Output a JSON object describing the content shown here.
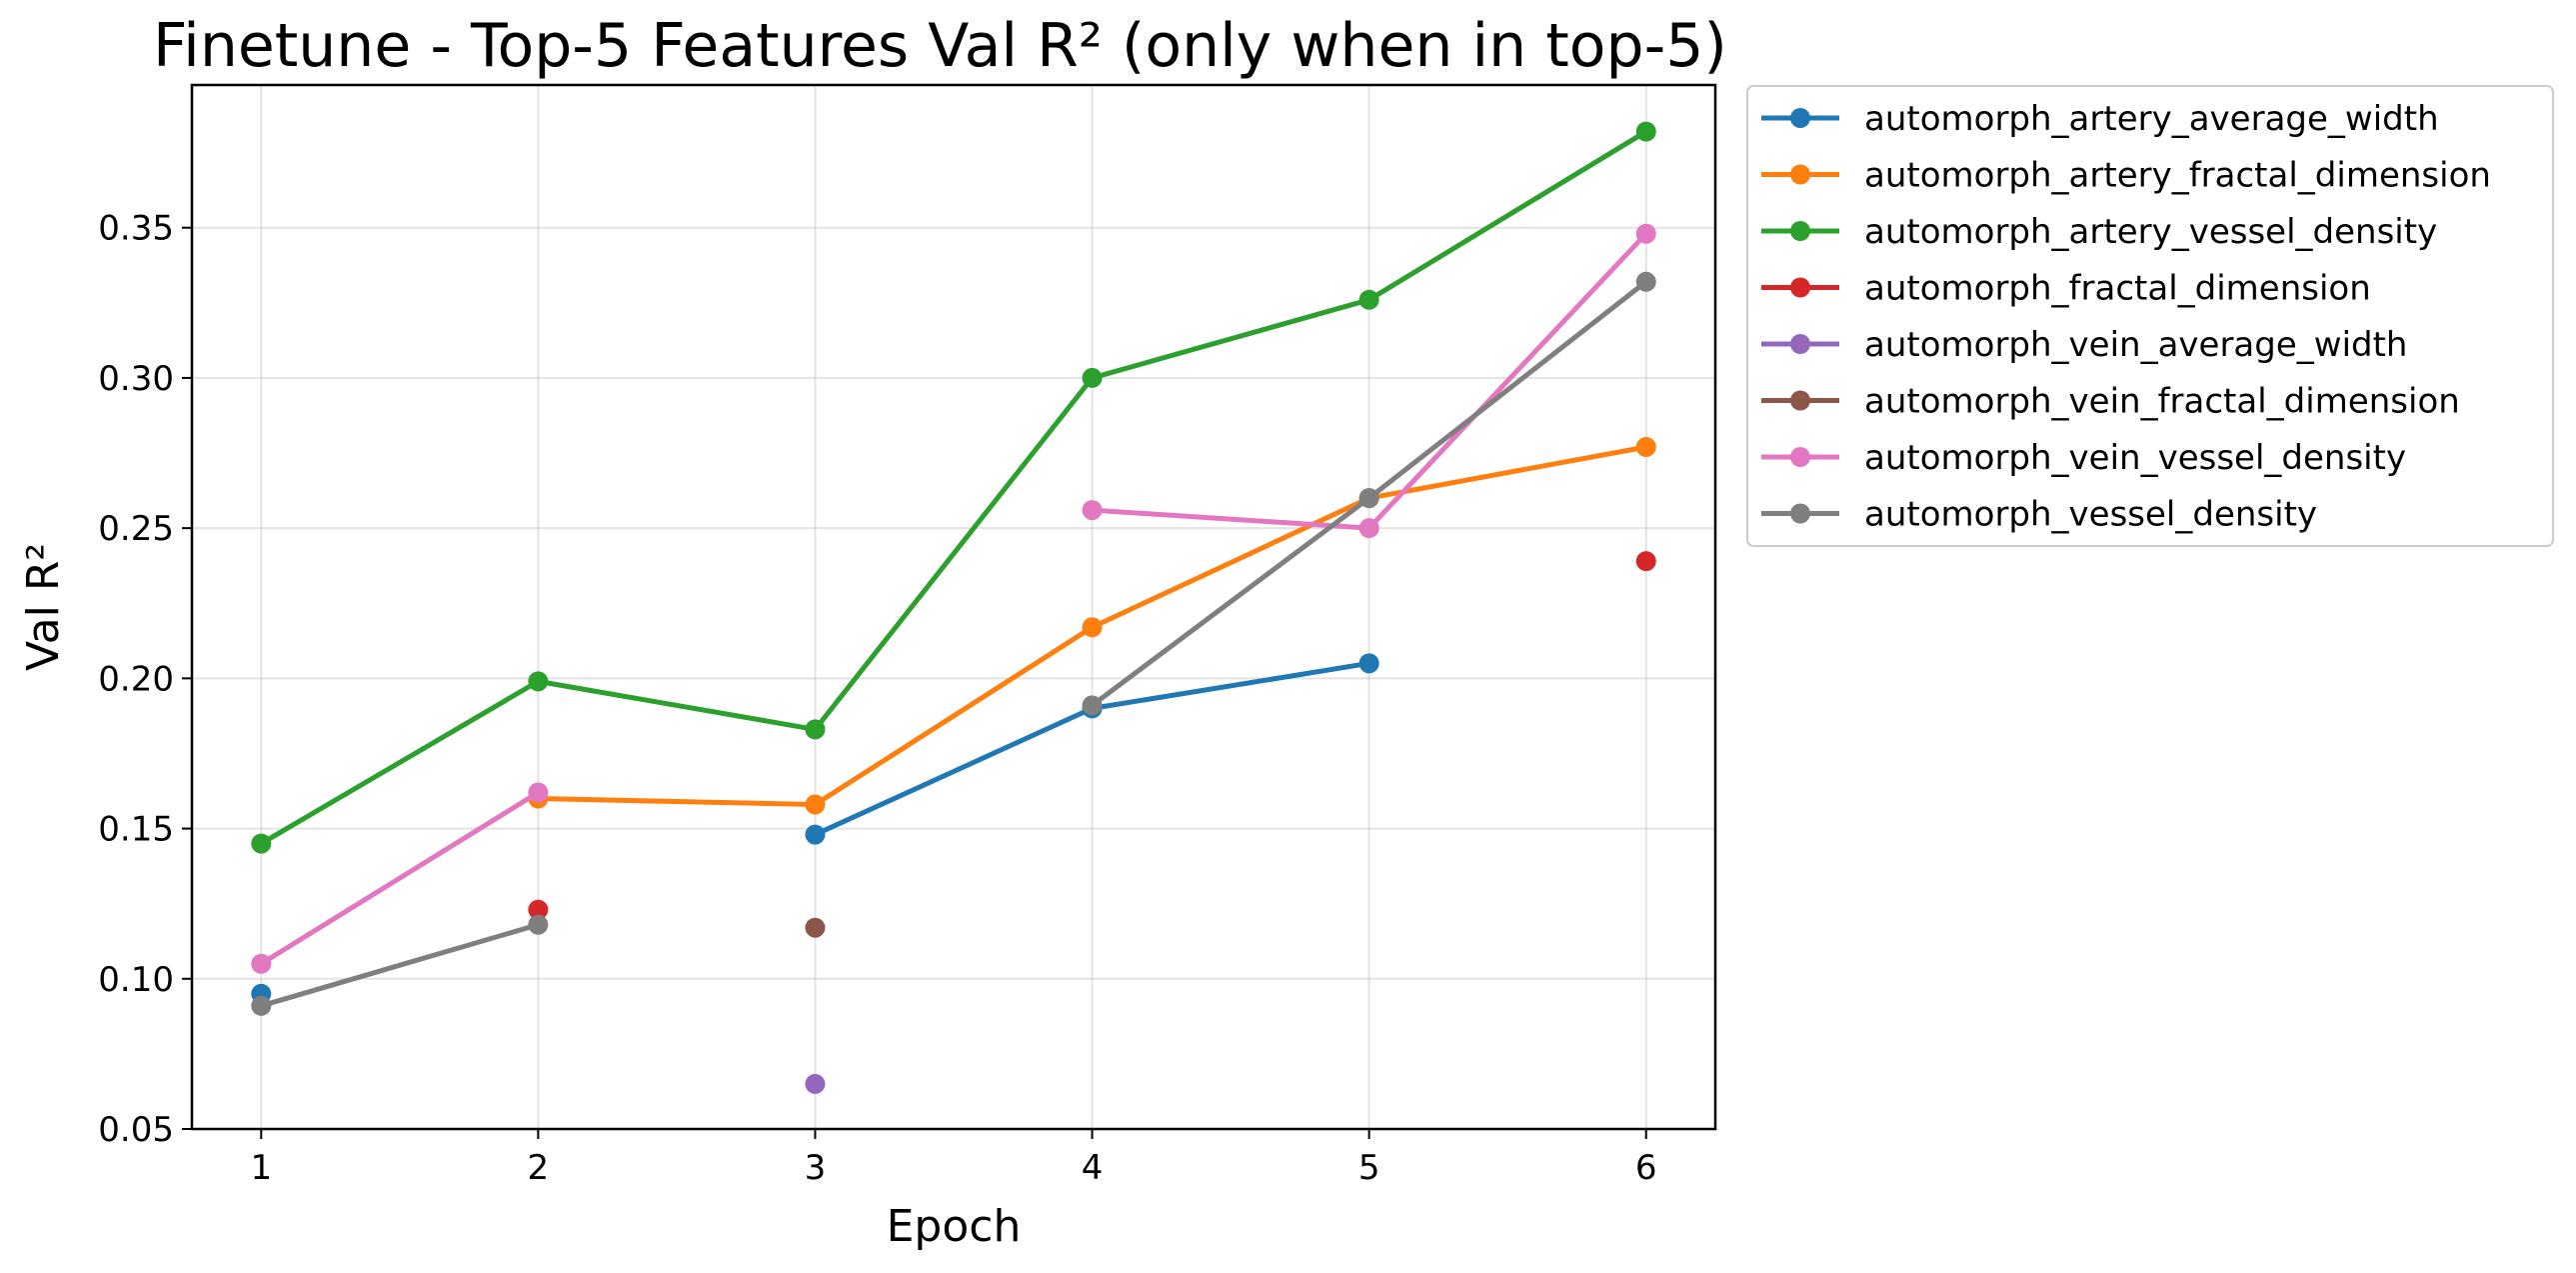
{
  "chart_data": {
    "type": "line",
    "title": "Finetune - Top-5 Features Val R² (only when in top-5)",
    "xlabel": "Epoch",
    "ylabel": "Val R²",
    "x": [
      1,
      2,
      3,
      4,
      5,
      6
    ],
    "xlim": [
      0.75,
      6.25
    ],
    "ylim": [
      0.05,
      0.3975
    ],
    "yticks": [
      0.05,
      0.1,
      0.15,
      0.2,
      0.25,
      0.3,
      0.35
    ],
    "xticks": [
      1,
      2,
      3,
      4,
      5,
      6
    ],
    "grid": true,
    "legend_position": "outside-top-right",
    "series": [
      {
        "name": "automorph_artery_average_width",
        "color": "#1f77b4",
        "values": [
          0.095,
          null,
          0.148,
          0.19,
          0.205,
          null
        ]
      },
      {
        "name": "automorph_artery_fractal_dimension",
        "color": "#ff7f0e",
        "values": [
          null,
          0.16,
          0.158,
          0.217,
          0.26,
          0.277
        ]
      },
      {
        "name": "automorph_artery_vessel_density",
        "color": "#2ca02c",
        "values": [
          0.145,
          0.199,
          0.183,
          0.3,
          0.326,
          0.382
        ]
      },
      {
        "name": "automorph_fractal_dimension",
        "color": "#d62728",
        "values": [
          null,
          0.123,
          null,
          null,
          null,
          0.239
        ]
      },
      {
        "name": "automorph_vein_average_width",
        "color": "#9467bd",
        "values": [
          null,
          null,
          0.065,
          null,
          null,
          null
        ]
      },
      {
        "name": "automorph_vein_fractal_dimension",
        "color": "#8c564b",
        "values": [
          null,
          null,
          0.117,
          null,
          null,
          null
        ]
      },
      {
        "name": "automorph_vein_vessel_density",
        "color": "#e377c2",
        "values": [
          0.105,
          0.162,
          null,
          0.256,
          0.25,
          0.348
        ]
      },
      {
        "name": "automorph_vessel_density",
        "color": "#7f7f7f",
        "values": [
          0.091,
          0.118,
          null,
          0.191,
          0.26,
          0.332
        ]
      }
    ]
  }
}
